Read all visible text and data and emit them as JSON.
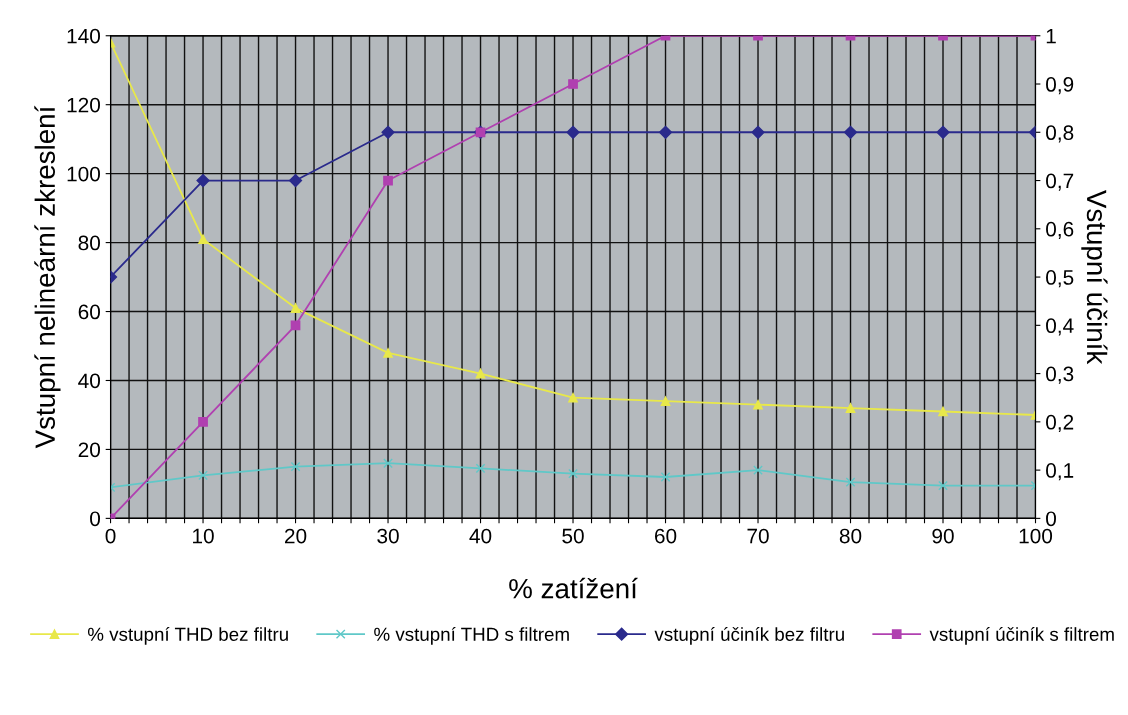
{
  "chart_data": {
    "type": "line",
    "xlabel": "% zatížení",
    "ylabel": "Vstupní nelineární zkreslení",
    "y2label": "Vstupní účiník",
    "x": [
      0,
      10,
      20,
      30,
      40,
      50,
      60,
      70,
      80,
      90,
      100
    ],
    "series": [
      {
        "name": "% vstupní THD bez filtru",
        "color": "#e8e84a",
        "marker": "triangle",
        "values": [
          138,
          81,
          61,
          48,
          42,
          35,
          34,
          33,
          32,
          31,
          30
        ]
      },
      {
        "name": "% vstupní THD s filtrem",
        "color": "#5fc8c8",
        "marker": "cross",
        "values": [
          9,
          12.5,
          15,
          16,
          14.5,
          13,
          12,
          14,
          10.5,
          9.5,
          9.5
        ]
      },
      {
        "name": "vstupní účiník bez filtru",
        "color": "#2a2a8c",
        "marker": "diamond",
        "axis": "y2",
        "values": [
          0.5,
          0.7,
          0.7,
          0.8,
          0.8,
          0.8,
          0.8,
          0.8,
          0.8,
          0.8,
          0.8
        ]
      },
      {
        "name": "vstupní účiník s filtrem",
        "color": "#b040b0",
        "marker": "square",
        "axis": "y2",
        "values": [
          0,
          0.2,
          0.4,
          0.7,
          0.8,
          0.9,
          1,
          1,
          1,
          1,
          1
        ]
      }
    ],
    "xlim": [
      0,
      100
    ],
    "xticks": [
      0,
      {
        "value": 2,
        "label": null
      },
      {
        "value": 4,
        "label": null
      },
      {
        "value": 6,
        "label": null
      },
      {
        "value": 8,
        "label": null
      },
      10,
      {
        "value": 12,
        "label": null
      },
      {
        "value": 14,
        "label": null
      },
      {
        "value": 16,
        "label": null
      },
      {
        "value": 18,
        "label": null
      },
      20,
      {
        "value": 22,
        "label": null
      },
      {
        "value": 24,
        "label": null
      },
      {
        "value": 26,
        "label": null
      },
      {
        "value": 28,
        "label": null
      },
      30,
      {
        "value": 32,
        "label": null
      },
      {
        "value": 34,
        "label": null
      },
      {
        "value": 36,
        "label": null
      },
      {
        "value": 38,
        "label": null
      },
      40,
      {
        "value": 42,
        "label": null
      },
      {
        "value": 44,
        "label": null
      },
      {
        "value": 46,
        "label": null
      },
      {
        "value": 48,
        "label": null
      },
      50,
      {
        "value": 52,
        "label": null
      },
      {
        "value": 54,
        "label": null
      },
      {
        "value": 56,
        "label": null
      },
      {
        "value": 58,
        "label": null
      },
      60,
      {
        "value": 62,
        "label": null
      },
      {
        "value": 64,
        "label": null
      },
      {
        "value": 66,
        "label": null
      },
      {
        "value": 68,
        "label": null
      },
      70,
      {
        "value": 72,
        "label": null
      },
      {
        "value": 74,
        "label": null
      },
      {
        "value": 76,
        "label": null
      },
      {
        "value": 78,
        "label": null
      },
      80,
      {
        "value": 82,
        "label": null
      },
      {
        "value": 84,
        "label": null
      },
      {
        "value": 86,
        "label": null
      },
      {
        "value": 88,
        "label": null
      },
      90,
      {
        "value": 92,
        "label": null
      },
      {
        "value": 94,
        "label": null
      },
      {
        "value": 96,
        "label": null
      },
      {
        "value": 98,
        "label": null
      },
      100
    ],
    "ylim": [
      0,
      140
    ],
    "yticks": [
      0,
      20,
      40,
      60,
      80,
      100,
      120,
      140
    ],
    "y2lim": [
      0,
      1
    ],
    "y2ticks": [
      0,
      {
        "value": 0.1,
        "label": "0,1"
      },
      {
        "value": 0.2,
        "label": "0,2"
      },
      {
        "value": 0.3,
        "label": "0,3"
      },
      {
        "value": 0.4,
        "label": "0,4"
      },
      {
        "value": 0.5,
        "label": "0,5"
      },
      {
        "value": 0.6,
        "label": "0,6"
      },
      {
        "value": 0.7,
        "label": "0,7"
      },
      {
        "value": 0.8,
        "label": "0,8"
      },
      {
        "value": 0.9,
        "label": "0,9"
      },
      1
    ],
    "grid": true,
    "legend": "bottom",
    "line_style": "solid"
  }
}
